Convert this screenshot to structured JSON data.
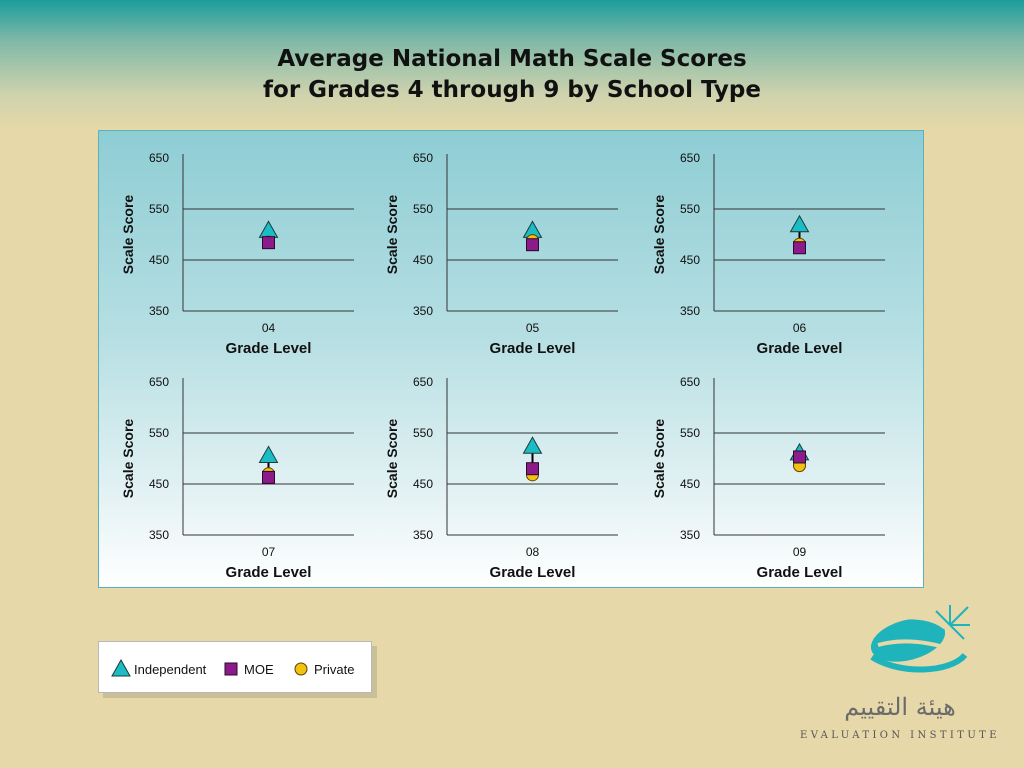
{
  "title_line1": "Average National Math Scale Scores",
  "title_line2": "for Grades 4 through 9 by School Type",
  "chart_data": {
    "type": "scatter",
    "ylabel": "Scale Score",
    "xlabel": "Grade Level",
    "ylim": [
      350,
      650
    ],
    "yticks": [
      350,
      450,
      550,
      650
    ],
    "grid": true,
    "series_styles": [
      {
        "name": "Independent",
        "marker": "triangle",
        "color": "#1bbcc4"
      },
      {
        "name": "MOE",
        "marker": "square",
        "color": "#8b1a8b"
      },
      {
        "name": "Private",
        "marker": "circle",
        "color": "#f2c20e"
      }
    ],
    "panels": [
      {
        "grade": "04",
        "values": {
          "Independent": 508,
          "Private": 485,
          "MOE": 484
        }
      },
      {
        "grade": "05",
        "values": {
          "Independent": 508,
          "Private": 488,
          "MOE": 480
        }
      },
      {
        "grade": "06",
        "values": {
          "Independent": 519,
          "Private": 481,
          "MOE": 474
        }
      },
      {
        "grade": "07",
        "values": {
          "Independent": 506,
          "Private": 470,
          "MOE": 463
        }
      },
      {
        "grade": "08",
        "values": {
          "Independent": 524,
          "Private": 468,
          "MOE": 480
        }
      },
      {
        "grade": "09",
        "values": {
          "Independent": 511,
          "Private": 486,
          "MOE": 503
        }
      }
    ]
  },
  "legend": {
    "items": [
      "Independent",
      "MOE",
      "Private"
    ]
  },
  "logo": {
    "arabic": "هيئة التقييم",
    "english": "EVALUATION INSTITUTE"
  }
}
